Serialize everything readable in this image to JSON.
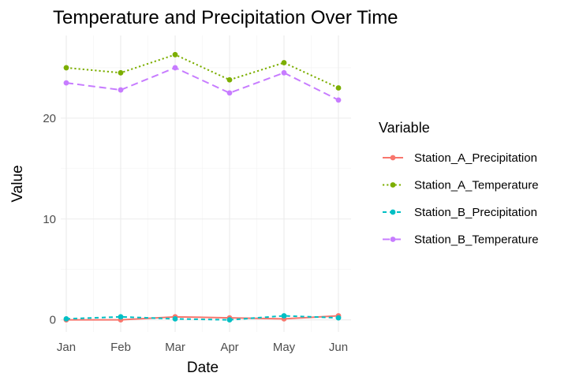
{
  "chart_data": {
    "type": "line",
    "title": "Temperature and Precipitation Over Time",
    "xlabel": "Date",
    "ylabel": "Value",
    "categories": [
      "Jan",
      "Feb",
      "Mar",
      "Apr",
      "May",
      "Jun"
    ],
    "ylim": [
      -1.2,
      28.2
    ],
    "yticks": [
      0,
      10,
      20
    ],
    "grid": true,
    "legend": {
      "title": "Variable",
      "position": "right"
    },
    "series": [
      {
        "name": "Station_A_Precipitation",
        "color": "#F8766D",
        "dash": "solid",
        "values": [
          0.0,
          0.0,
          0.3,
          0.2,
          0.1,
          0.4
        ]
      },
      {
        "name": "Station_A_Temperature",
        "color": "#7CAE00",
        "dash": "dotted",
        "values": [
          25.0,
          24.5,
          26.3,
          23.8,
          25.5,
          23.0
        ]
      },
      {
        "name": "Station_B_Precipitation",
        "color": "#00BFC4",
        "dash": "dashed",
        "values": [
          0.1,
          0.3,
          0.1,
          0.0,
          0.4,
          0.2
        ]
      },
      {
        "name": "Station_B_Temperature",
        "color": "#C77CFF",
        "dash": "longdash",
        "values": [
          23.5,
          22.8,
          25.0,
          22.5,
          24.5,
          21.8
        ]
      }
    ]
  }
}
